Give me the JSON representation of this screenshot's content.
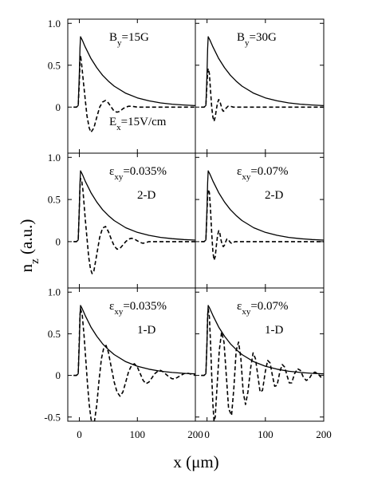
{
  "chart_data": {
    "type": "line",
    "title": "",
    "xlabel": "x (μm)",
    "ylabel_main": "n",
    "ylabel_sub": "z",
    "ylabel_unit": " (a.u.)",
    "grid": false,
    "x_ticks": [
      0,
      100,
      200
    ],
    "xlim": [
      -20,
      200
    ],
    "rows": [
      {
        "ylim": [
          -0.55,
          1.05
        ],
        "y_ticks": [
          0,
          0.5,
          1.0
        ],
        "y_tick_labels": [
          "0",
          "0.5",
          "1.0"
        ]
      },
      {
        "ylim": [
          -0.55,
          1.05
        ],
        "y_ticks": [
          0,
          0.5,
          1.0
        ],
        "y_tick_labels": [
          "0",
          "0.5",
          "1.0"
        ]
      },
      {
        "ylim": [
          -0.55,
          1.05
        ],
        "y_ticks": [
          -0.5,
          0,
          0.5,
          1.0
        ],
        "y_tick_labels": [
          "-0.5",
          "0",
          "0.5",
          "1.0"
        ]
      }
    ],
    "panels": [
      {
        "row": 0,
        "col": 0,
        "labels": [
          {
            "main": "B",
            "sub": "y",
            "rest": "=15G",
            "pos": "top-mid"
          },
          {
            "main": "E",
            "sub": "x",
            "rest": "=15V/cm",
            "pos": "bottom-mid"
          }
        ],
        "series": [
          {
            "style": "solid",
            "x": [
              -10,
              -5,
              -2,
              0,
              1,
              2,
              5,
              10,
              20,
              30,
              40,
              50,
              60,
              80,
              100,
              120,
              140,
              160,
              180,
              200
            ],
            "y": [
              0,
              0,
              0.02,
              0.4,
              0.7,
              0.84,
              0.8,
              0.72,
              0.58,
              0.47,
              0.38,
              0.31,
              0.25,
              0.165,
              0.11,
              0.075,
              0.05,
              0.035,
              0.025,
              0.018
            ]
          },
          {
            "style": "dashed",
            "x": [
              -10,
              -5,
              -2,
              0,
              1,
              2,
              4,
              7,
              10,
              13,
              17,
              20,
              25,
              30,
              35,
              40,
              45,
              50,
              55,
              60,
              65,
              70,
              75,
              80,
              85,
              90,
              100,
              110,
              120,
              130,
              140,
              150,
              160,
              170,
              180,
              190,
              200
            ],
            "y": [
              0,
              0,
              0.02,
              0.3,
              0.55,
              0.62,
              0.5,
              0.3,
              0.1,
              -0.1,
              -0.25,
              -0.3,
              -0.25,
              -0.12,
              0,
              0.06,
              0.08,
              0.05,
              0,
              -0.05,
              -0.06,
              -0.05,
              -0.02,
              0,
              0.01,
              0.01,
              0,
              0,
              0,
              0,
              0,
              0,
              0,
              0,
              0,
              0,
              0
            ]
          }
        ]
      },
      {
        "row": 0,
        "col": 1,
        "labels": [
          {
            "main": "B",
            "sub": "y",
            "rest": "=30G",
            "pos": "top-mid"
          }
        ],
        "series": [
          {
            "style": "solid",
            "x": [
              -10,
              -5,
              -2,
              0,
              1,
              2,
              5,
              10,
              20,
              30,
              40,
              50,
              60,
              80,
              100,
              120,
              140,
              160,
              180,
              200
            ],
            "y": [
              0,
              0,
              0.02,
              0.4,
              0.7,
              0.84,
              0.8,
              0.72,
              0.58,
              0.47,
              0.38,
              0.31,
              0.25,
              0.165,
              0.11,
              0.075,
              0.05,
              0.035,
              0.025,
              0.018
            ]
          },
          {
            "style": "dashed",
            "x": [
              -10,
              -5,
              -2,
              0,
              1,
              2,
              4,
              6,
              8,
              10,
              12,
              14,
              16,
              18,
              20,
              22,
              24,
              26,
              28,
              30,
              33,
              36,
              40,
              45,
              50,
              60,
              80,
              100,
              120,
              140,
              160,
              180,
              200
            ],
            "y": [
              0,
              0,
              0.02,
              0.28,
              0.42,
              0.46,
              0.4,
              0.2,
              0,
              -0.12,
              -0.17,
              -0.12,
              -0.03,
              0.05,
              0.09,
              0.07,
              0.02,
              -0.03,
              -0.05,
              -0.04,
              -0.01,
              0.01,
              0.01,
              0,
              0,
              0,
              0,
              0,
              0,
              0,
              0,
              0,
              0
            ]
          }
        ]
      },
      {
        "row": 1,
        "col": 0,
        "labels": [
          {
            "main": "ε",
            "sub": "xy",
            "rest": "=0.035%",
            "pos": "top-mid"
          },
          {
            "main": "2-D",
            "sub": "",
            "rest": "",
            "pos": "mid-right"
          }
        ],
        "series": [
          {
            "style": "solid",
            "x": [
              -10,
              -5,
              -2,
              0,
              1,
              2,
              5,
              10,
              20,
              30,
              40,
              50,
              60,
              80,
              100,
              120,
              140,
              160,
              180,
              200
            ],
            "y": [
              0,
              0,
              0.02,
              0.4,
              0.7,
              0.84,
              0.8,
              0.72,
              0.58,
              0.47,
              0.38,
              0.31,
              0.25,
              0.165,
              0.11,
              0.075,
              0.05,
              0.035,
              0.025,
              0.018
            ]
          },
          {
            "style": "dashed",
            "x": [
              -10,
              -5,
              -2,
              0,
              1,
              2,
              4,
              6,
              8,
              10,
              13,
              16,
              19,
              22,
              25,
              30,
              35,
              40,
              45,
              50,
              55,
              60,
              65,
              70,
              75,
              80,
              85,
              90,
              95,
              100,
              105,
              110,
              115,
              120,
              130,
              140,
              160,
              180,
              200
            ],
            "y": [
              0,
              0,
              0.02,
              0.4,
              0.65,
              0.75,
              0.72,
              0.62,
              0.45,
              0.28,
              0.05,
              -0.18,
              -0.32,
              -0.38,
              -0.35,
              -0.15,
              0.05,
              0.16,
              0.18,
              0.12,
              0.03,
              -0.05,
              -0.09,
              -0.08,
              -0.04,
              0,
              0.03,
              0.04,
              0.03,
              0.01,
              -0.01,
              -0.02,
              -0.01,
              0,
              0,
              0,
              0,
              0,
              0
            ]
          }
        ]
      },
      {
        "row": 1,
        "col": 1,
        "labels": [
          {
            "main": "ε",
            "sub": "xy",
            "rest": "=0.07%",
            "pos": "top-mid"
          },
          {
            "main": "2-D",
            "sub": "",
            "rest": "",
            "pos": "mid-right"
          }
        ],
        "series": [
          {
            "style": "solid",
            "x": [
              -10,
              -5,
              -2,
              0,
              1,
              2,
              5,
              10,
              20,
              30,
              40,
              50,
              60,
              80,
              100,
              120,
              140,
              160,
              180,
              200
            ],
            "y": [
              0,
              0,
              0.02,
              0.4,
              0.7,
              0.84,
              0.8,
              0.72,
              0.58,
              0.47,
              0.38,
              0.31,
              0.25,
              0.165,
              0.11,
              0.075,
              0.05,
              0.035,
              0.025,
              0.018
            ]
          },
          {
            "style": "dashed",
            "x": [
              -10,
              -5,
              -2,
              0,
              1,
              2,
              4,
              6,
              8,
              10,
              12,
              14,
              16,
              18,
              20,
              22,
              24,
              26,
              28,
              30,
              32,
              34,
              36,
              38,
              40,
              42,
              45,
              48,
              52,
              56,
              60,
              70,
              80,
              100,
              120,
              140,
              160,
              180,
              200
            ],
            "y": [
              0,
              0,
              0.02,
              0.35,
              0.55,
              0.62,
              0.58,
              0.38,
              0.1,
              -0.12,
              -0.22,
              -0.18,
              -0.05,
              0.07,
              0.13,
              0.1,
              0.02,
              -0.04,
              -0.06,
              -0.04,
              0,
              0.03,
              0.03,
              0.01,
              -0.01,
              -0.02,
              -0.01,
              0,
              0,
              0,
              0,
              0,
              0,
              0,
              0,
              0,
              0,
              0,
              0
            ]
          }
        ]
      },
      {
        "row": 2,
        "col": 0,
        "labels": [
          {
            "main": "ε",
            "sub": "xy",
            "rest": "=0.035%",
            "pos": "top-mid"
          },
          {
            "main": "1-D",
            "sub": "",
            "rest": "",
            "pos": "mid-right"
          }
        ],
        "series": [
          {
            "style": "solid",
            "x": [
              -10,
              -5,
              -2,
              0,
              1,
              2,
              5,
              10,
              20,
              30,
              40,
              50,
              60,
              80,
              100,
              120,
              140,
              160,
              180,
              200
            ],
            "y": [
              0,
              0,
              0.02,
              0.4,
              0.7,
              0.84,
              0.8,
              0.72,
              0.58,
              0.47,
              0.38,
              0.31,
              0.25,
              0.165,
              0.11,
              0.075,
              0.05,
              0.035,
              0.025,
              0.018
            ]
          },
          {
            "style": "dashed",
            "x": [
              -10,
              -5,
              -2,
              0,
              1,
              2,
              5,
              8,
              11,
              14,
              17,
              20,
              23,
              26,
              30,
              34,
              38,
              42,
              46,
              50,
              55,
              60,
              65,
              70,
              75,
              80,
              85,
              90,
              95,
              100,
              105,
              110,
              115,
              120,
              125,
              130,
              135,
              140,
              145,
              150,
              155,
              160,
              165,
              170,
              175,
              180,
              185,
              190,
              195,
              200
            ],
            "y": [
              0,
              0,
              0.02,
              0.45,
              0.72,
              0.8,
              0.72,
              0.48,
              0.2,
              -0.1,
              -0.35,
              -0.52,
              -0.6,
              -0.55,
              -0.35,
              -0.05,
              0.2,
              0.33,
              0.36,
              0.28,
              0.1,
              -0.08,
              -0.2,
              -0.25,
              -0.2,
              -0.08,
              0.05,
              0.12,
              0.14,
              0.1,
              0.02,
              -0.06,
              -0.1,
              -0.08,
              -0.03,
              0.02,
              0.05,
              0.06,
              0.04,
              0.01,
              -0.02,
              -0.04,
              -0.04,
              -0.02,
              0,
              0.02,
              0.03,
              0.02,
              0.01,
              0
            ]
          }
        ]
      },
      {
        "row": 2,
        "col": 1,
        "labels": [
          {
            "main": "ε",
            "sub": "xy",
            "rest": "=0.07%",
            "pos": "top-mid"
          },
          {
            "main": "1-D",
            "sub": "",
            "rest": "",
            "pos": "mid-right"
          }
        ],
        "series": [
          {
            "style": "solid",
            "x": [
              -10,
              -5,
              -2,
              0,
              1,
              2,
              5,
              10,
              20,
              30,
              40,
              50,
              60,
              80,
              100,
              120,
              140,
              160,
              180,
              200
            ],
            "y": [
              0,
              0,
              0.02,
              0.4,
              0.7,
              0.84,
              0.8,
              0.72,
              0.58,
              0.47,
              0.38,
              0.31,
              0.25,
              0.165,
              0.11,
              0.075,
              0.05,
              0.035,
              0.025,
              0.018
            ]
          },
          {
            "style": "dashed",
            "x": [
              -10,
              -5,
              -2,
              0,
              1,
              2,
              4,
              6,
              8,
              10,
              12,
              14,
              17,
              21,
              25,
              29,
              33,
              37,
              42,
              46,
              50,
              54,
              58,
              62,
              66,
              70,
              75,
              79,
              83,
              87,
              91,
              95,
              100,
              104,
              108,
              112,
              116,
              120,
              125,
              129,
              133,
              137,
              141,
              145,
              150,
              155,
              160,
              165,
              170,
              175,
              180,
              185,
              190,
              195,
              200
            ],
            "y": [
              0,
              0,
              0.02,
              0.4,
              0.72,
              0.8,
              0.7,
              0.4,
              0,
              -0.35,
              -0.55,
              -0.5,
              -0.15,
              0.3,
              0.52,
              0.4,
              0,
              -0.4,
              -0.48,
              -0.15,
              0.3,
              0.4,
              0.2,
              -0.2,
              -0.35,
              -0.2,
              0.1,
              0.27,
              0.2,
              0,
              -0.2,
              -0.18,
              0.05,
              0.18,
              0.15,
              0,
              -0.13,
              -0.12,
              0.05,
              0.13,
              0.1,
              0,
              -0.09,
              -0.09,
              0.02,
              0.08,
              0.06,
              -0.02,
              -0.06,
              -0.04,
              0.02,
              0.04,
              0.02,
              -0.02,
              0
            ]
          }
        ]
      }
    ]
  }
}
